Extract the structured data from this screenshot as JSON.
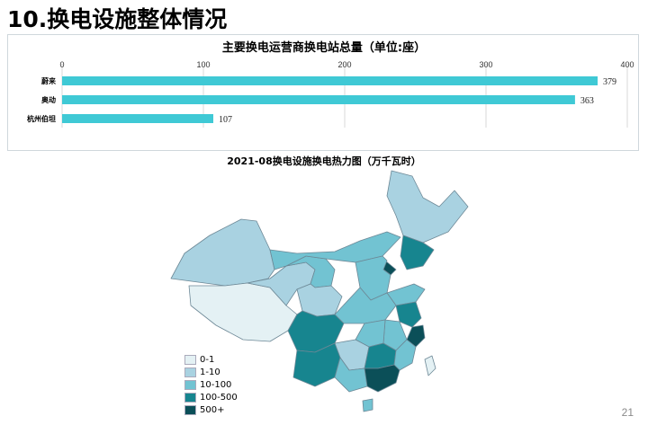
{
  "page": {
    "title": "10.换电设施整体情况",
    "page_number": "21"
  },
  "chart_data": [
    {
      "type": "bar",
      "orientation": "horizontal",
      "title": "主要换电运营商换电站总量（单位:座）",
      "categories": [
        "蔚来",
        "奥动",
        "杭州伯坦"
      ],
      "values": [
        379,
        363,
        107
      ],
      "xlim": [
        0,
        400
      ],
      "xticks": [
        0,
        100,
        200,
        300,
        400
      ],
      "bar_color": "#3fc9d5",
      "grid": true,
      "data_labels": true
    },
    {
      "type": "heatmap",
      "title": "2021-08换电设施换电热力图（万千瓦时）",
      "legend": [
        {
          "label": "0-1",
          "color": "#e4f1f4"
        },
        {
          "label": "1-10",
          "color": "#a9d2e1"
        },
        {
          "label": "10-100",
          "color": "#72c3d2"
        },
        {
          "label": "100-500",
          "color": "#17858f"
        },
        {
          "label": "500+",
          "color": "#0b4f58"
        }
      ]
    }
  ]
}
